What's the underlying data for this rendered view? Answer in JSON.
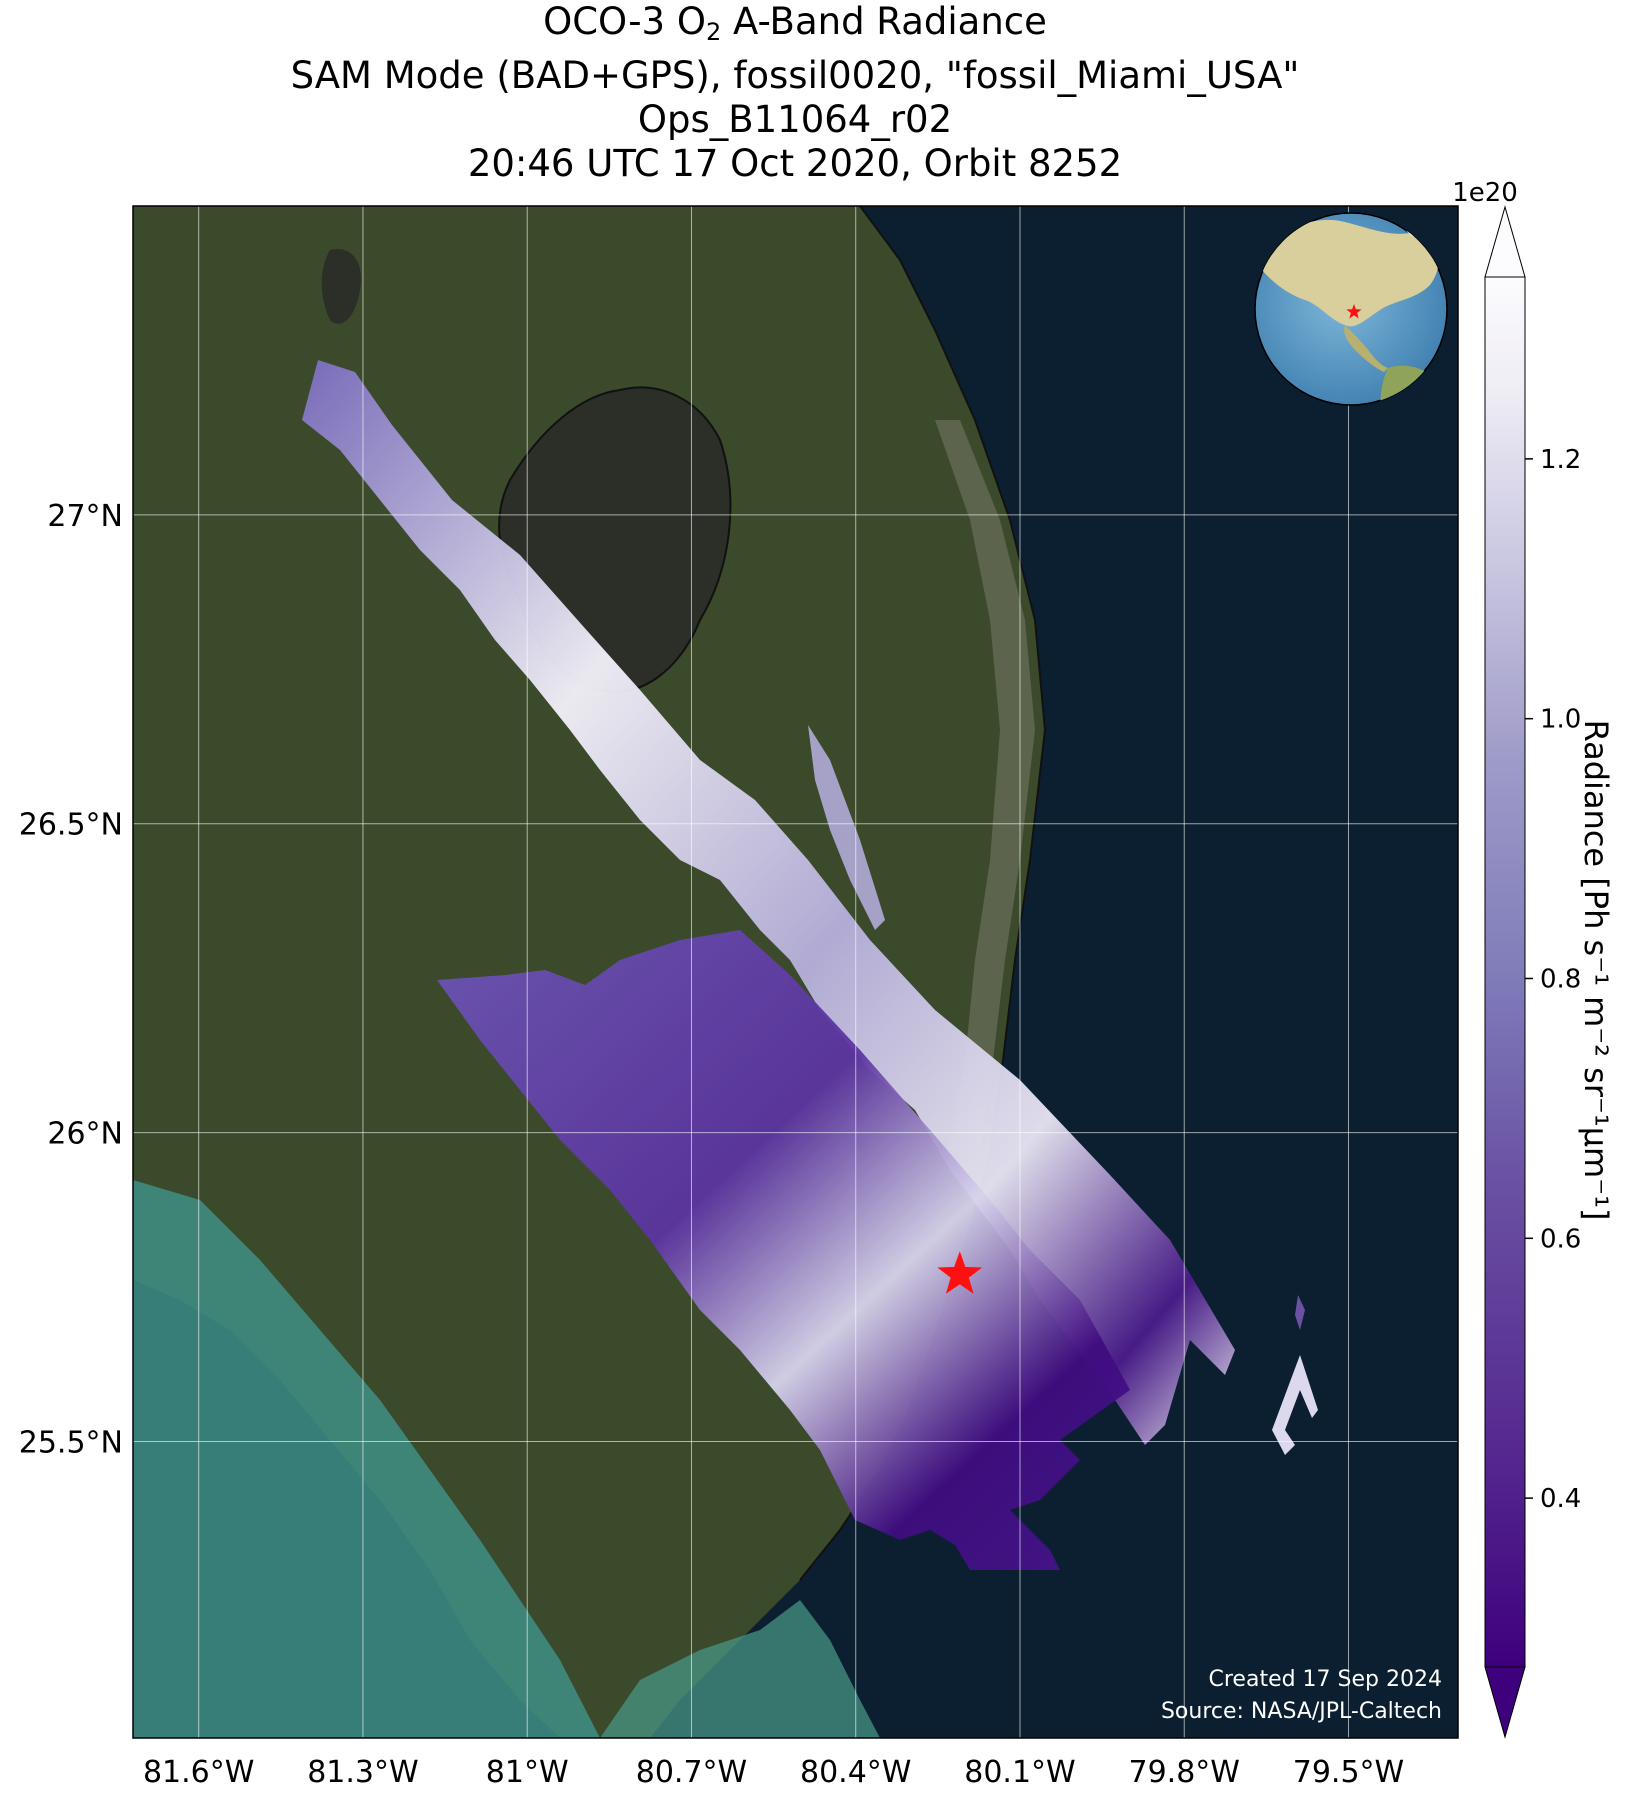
{
  "title": {
    "line1_prefix": "OCO-3 O",
    "line1_sub": "2",
    "line1_suffix": " A-Band Radiance",
    "line2": "SAM Mode (BAD+GPS), fossil0020, \"fossil_Miami_USA\"",
    "line3": "Ops_B11064_r02",
    "line4": "20:46 UTC 17 Oct 2020, Orbit 8252"
  },
  "map": {
    "lon_range": [
      -81.72,
      -79.3
    ],
    "lat_range": [
      25.02,
      27.5
    ],
    "lon_ticks": [
      "81.6°W",
      "81.3°W",
      "81°W",
      "80.7°W",
      "80.4°W",
      "80.1°W",
      "79.8°W",
      "79.5°W"
    ],
    "lat_ticks": [
      "27°N",
      "26.5°N",
      "26°N",
      "25.5°N"
    ],
    "target_marker": "red-star",
    "target_location": {
      "lon": -80.21,
      "lat": 25.77
    },
    "colors": {
      "ocean": "#0b1f30",
      "land": "#3a4a2a",
      "lake": "#2b2f28",
      "gulf_shallow": "#3f8f86",
      "star": "#ff1010"
    }
  },
  "colorbar": {
    "exponent": "1e20",
    "ticks": [
      "0.4",
      "0.6",
      "0.8",
      "1.0",
      "1.2"
    ],
    "tick_values": [
      0.4,
      0.6,
      0.8,
      1.0,
      1.2
    ],
    "range": [
      0.27,
      1.34
    ],
    "label": "Radiance [Ph s⁻¹ m⁻² sr⁻¹μm⁻¹]",
    "colormap": "Purples_r",
    "color_low": "#3f007d",
    "color_high": "#fcfbfd",
    "extend": "both"
  },
  "credits": {
    "created": "Created 17 Sep 2024",
    "source": "Source: NASA/JPL-Caltech"
  },
  "inset": {
    "type": "globe",
    "marker": "red-star"
  }
}
